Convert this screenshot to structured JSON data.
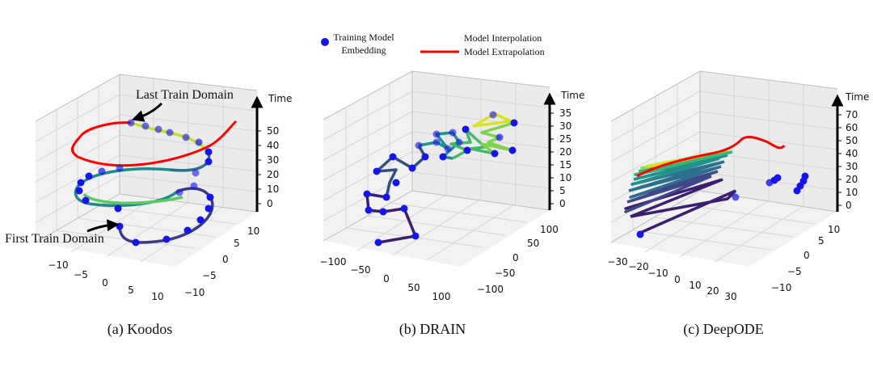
{
  "legend": {
    "embedding_label_line1": "Training Model",
    "embedding_label_line2": "Embedding",
    "interp_label": "Model Interpolation",
    "extrap_label": "Model Extrapolation",
    "colors": {
      "embedding": "#1515e8",
      "extrapolation": "#ff0000"
    }
  },
  "annotations": {
    "last_train": "Last Train Domain",
    "first_train": "First Train Domain"
  },
  "chart_data": [
    {
      "type": "line",
      "panel": "a",
      "caption": "(a) Koodos",
      "zlabel": "Time",
      "xticks": [
        "−10",
        "−5",
        "0",
        "5",
        "10"
      ],
      "yticks": [
        "10",
        "5",
        "0",
        "−5",
        "−10"
      ],
      "zticks": [
        "0",
        "10",
        "20",
        "30",
        "40",
        "50"
      ],
      "series": [
        {
          "name": "Training Model Embedding",
          "kind": "points"
        },
        {
          "name": "Model Interpolation",
          "kind": "gradient-line"
        },
        {
          "name": "Model Extrapolation",
          "kind": "line",
          "color": "#ff0000"
        }
      ]
    },
    {
      "type": "line",
      "panel": "b",
      "caption": "(b) DRAIN",
      "zlabel": "Time",
      "xticks": [
        "−100",
        "−50",
        "0",
        "50",
        "100"
      ],
      "yticks": [
        "100",
        "50",
        "0",
        "−50",
        "−100"
      ],
      "zticks": [
        "0",
        "5",
        "10",
        "15",
        "20",
        "25",
        "30",
        "35"
      ],
      "series": [
        {
          "name": "Training Model Embedding",
          "kind": "points"
        },
        {
          "name": "Model Interpolation",
          "kind": "gradient-line"
        }
      ]
    },
    {
      "type": "line",
      "panel": "c",
      "caption": "(c) DeepODE",
      "zlabel": "Time",
      "xticks": [
        "−30",
        "−20",
        "−10",
        "0",
        "10",
        "20",
        "30"
      ],
      "yticks": [
        "10",
        "5",
        "0",
        "−5",
        "−10"
      ],
      "zticks": [
        "0",
        "10",
        "20",
        "30",
        "40",
        "50",
        "60",
        "70"
      ],
      "series": [
        {
          "name": "Training Model Embedding",
          "kind": "points"
        },
        {
          "name": "Model Interpolation",
          "kind": "gradient-line"
        },
        {
          "name": "Model Extrapolation",
          "kind": "line",
          "color": "#ff0000"
        }
      ]
    }
  ]
}
